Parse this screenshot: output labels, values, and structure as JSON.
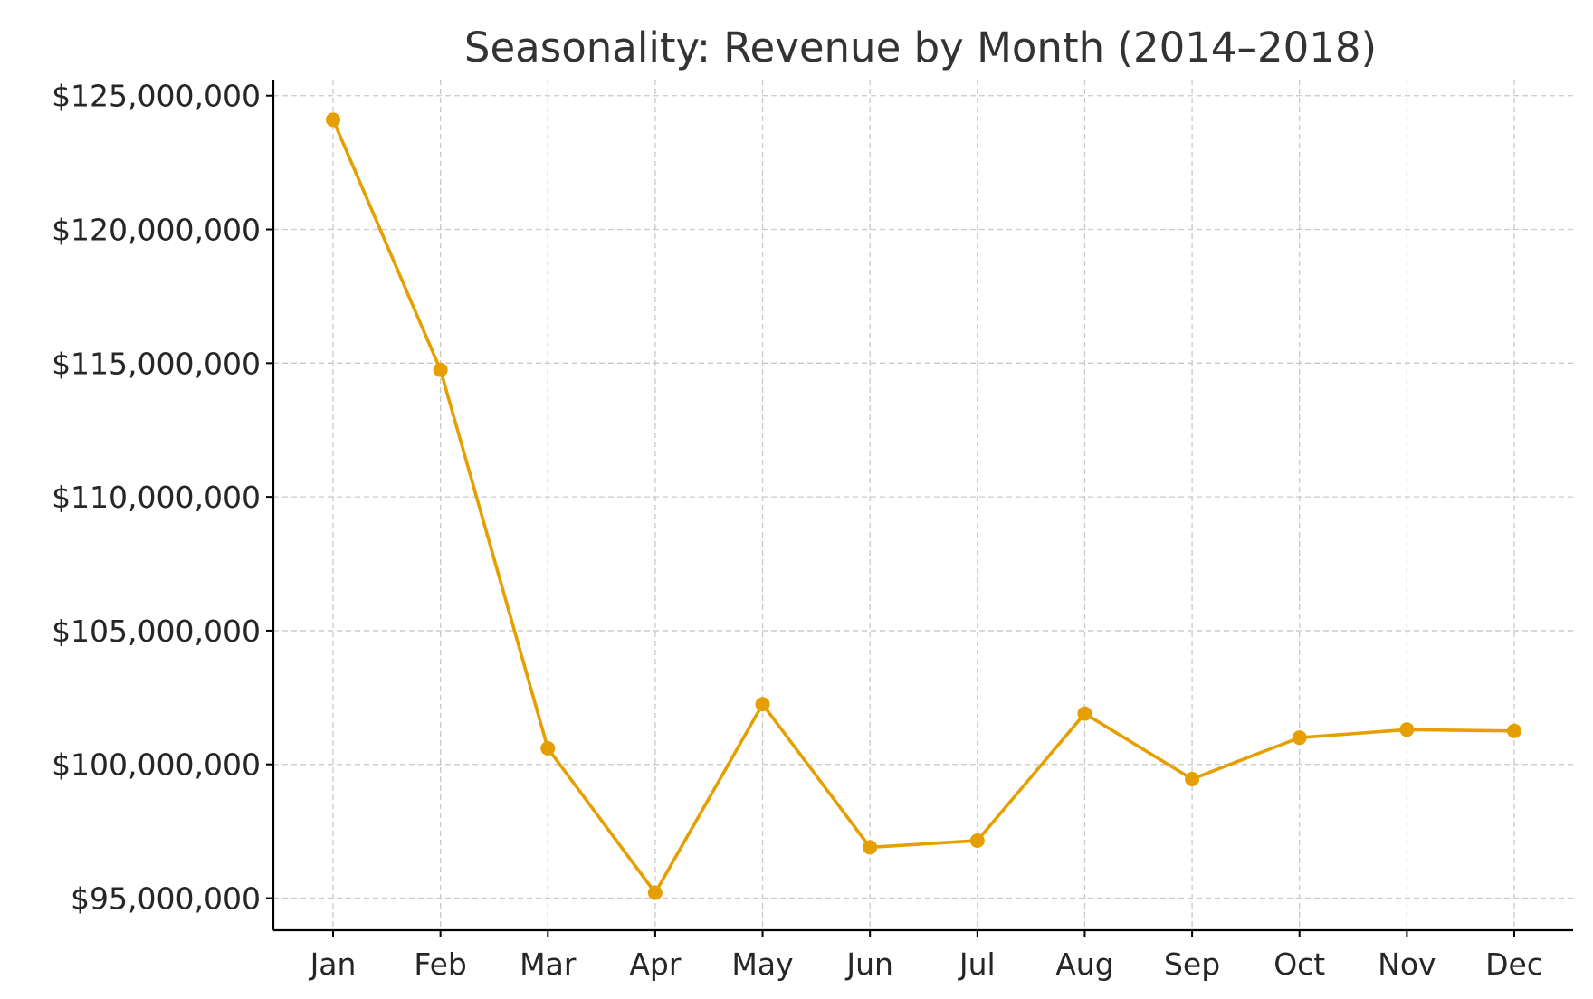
{
  "chart_data": {
    "type": "line",
    "title": "Seasonality: Revenue by Month (2014–2018)",
    "xlabel": "",
    "ylabel": "",
    "categories": [
      "Jan",
      "Feb",
      "Mar",
      "Apr",
      "May",
      "Jun",
      "Jul",
      "Aug",
      "Sep",
      "Oct",
      "Nov",
      "Dec"
    ],
    "series": [
      {
        "values": [
          124100000,
          114750000,
          100600000,
          95200000,
          102250000,
          96900000,
          97150000,
          101900000,
          99450000,
          101000000,
          101300000,
          101250000
        ],
        "color": "#E69F00",
        "marker": "circle"
      }
    ],
    "ylim": [
      93800000,
      125600000
    ],
    "yticks": [
      95000000,
      100000000,
      105000000,
      110000000,
      115000000,
      120000000,
      125000000
    ],
    "ytick_labels": [
      "$95,000,000",
      "$100,000,000",
      "$105,000,000",
      "$110,000,000",
      "$115,000,000",
      "$120,000,000",
      "$125,000,000"
    ],
    "grid": true,
    "legend": "none",
    "colors": {
      "axis": "#000000",
      "grid": "#c8c8c8",
      "text": "#262626",
      "title": "#333333"
    }
  }
}
